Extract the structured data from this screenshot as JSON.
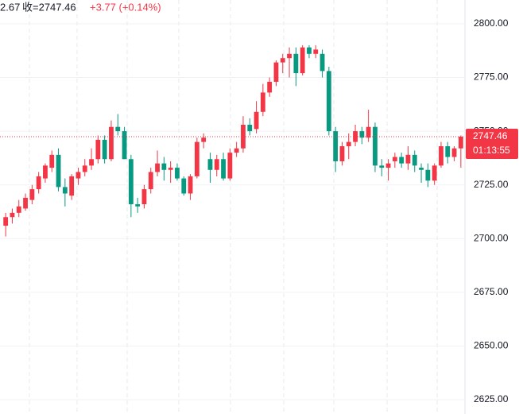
{
  "header": {
    "prev": "2.67",
    "close_label": "收=2747.46",
    "change": "+3.77 (+0.14%)"
  },
  "chart_data": {
    "type": "candlestick",
    "up_color": "#f23645",
    "down_color": "#089981",
    "ylim": [
      2618.36,
      2811.07
    ],
    "yticks": [
      {
        "value": 2625,
        "label": "2625.00"
      },
      {
        "value": 2650,
        "label": "2650.00"
      },
      {
        "value": 2675,
        "label": "2675.00"
      },
      {
        "value": 2700,
        "label": "2700.00"
      },
      {
        "value": 2725,
        "label": "2725.00"
      },
      {
        "value": 2750,
        "label": "2750.00"
      },
      {
        "value": 2775,
        "label": "2775.00"
      },
      {
        "value": 2800,
        "label": "2800.00"
      }
    ],
    "grid": true,
    "last_price": {
      "value": 2747.46,
      "label": "2747.46",
      "countdown": "01:13:55"
    },
    "open": [
      2706,
      2710,
      2712,
      2714,
      2718,
      2723,
      2728,
      2733,
      2739,
      2724,
      2720,
      2728,
      2731,
      2734,
      2737,
      2746,
      2737,
      2752,
      2750,
      2737,
      2716,
      2716,
      2723,
      2731,
      2735,
      2732,
      2733,
      2728,
      2721,
      2729,
      2745,
      2737,
      2732,
      2737,
      2728,
      2740,
      2742,
      2753,
      2751,
      2759,
      2768,
      2773,
      2782,
      2784,
      2786,
      2777,
      2789,
      2786,
      2786,
      2778,
      2750,
      2736,
      2743,
      2745,
      2750,
      2747,
      2752,
      2734,
      2733,
      2736,
      2738,
      2735,
      2739,
      2733,
      2732,
      2727,
      2734,
      2743,
      2738,
      2742
    ],
    "high": [
      2712,
      2714,
      2718,
      2721,
      2725,
      2731,
      2735,
      2741,
      2742,
      2728,
      2730,
      2733,
      2737,
      2742,
      2748,
      2748,
      2755,
      2758,
      2752,
      2739,
      2719,
      2725,
      2733,
      2741,
      2738,
      2736,
      2735,
      2729,
      2730,
      2747,
      2749,
      2740,
      2739,
      2740,
      2742,
      2745,
      2757,
      2756,
      2764,
      2772,
      2775,
      2783,
      2786,
      2789,
      2789,
      2790,
      2790,
      2790,
      2788,
      2780,
      2752,
      2745,
      2749,
      2753,
      2752,
      2760,
      2754,
      2737,
      2737,
      2740,
      2740,
      2743,
      2741,
      2735,
      2735,
      2735,
      2745,
      2745,
      2743,
      2748
    ],
    "low": [
      2701,
      2707,
      2710,
      2713,
      2716,
      2721,
      2726,
      2731,
      2722,
      2715,
      2718,
      2725,
      2729,
      2732,
      2735,
      2735,
      2736,
      2748,
      2737,
      2710,
      2712,
      2714,
      2721,
      2729,
      2727,
      2726,
      2727,
      2720,
      2718,
      2728,
      2742,
      2726,
      2729,
      2727,
      2727,
      2738,
      2740,
      2748,
      2749,
      2757,
      2766,
      2771,
      2777,
      2775,
      2771,
      2776,
      2784,
      2784,
      2775,
      2748,
      2731,
      2734,
      2737,
      2743,
      2744,
      2745,
      2731,
      2729,
      2727,
      2733,
      2733,
      2732,
      2731,
      2726,
      2724,
      2725,
      2733,
      2735,
      2736,
      2733
    ],
    "close": [
      2710,
      2712,
      2715,
      2719,
      2723,
      2729,
      2734,
      2739,
      2724,
      2721,
      2729,
      2731,
      2734,
      2737,
      2746,
      2737,
      2752,
      2750,
      2737,
      2716,
      2715,
      2723,
      2731,
      2735,
      2732,
      2733,
      2728,
      2721,
      2729,
      2745,
      2747,
      2732,
      2737,
      2728,
      2740,
      2742,
      2753,
      2750,
      2759,
      2768,
      2773,
      2782,
      2784,
      2786,
      2777,
      2789,
      2786,
      2788,
      2778,
      2750,
      2736,
      2743,
      2745,
      2750,
      2747,
      2752,
      2734,
      2733,
      2735,
      2738,
      2735,
      2739,
      2734,
      2732,
      2727,
      2734,
      2743,
      2738,
      2742,
      2747.46
    ]
  }
}
